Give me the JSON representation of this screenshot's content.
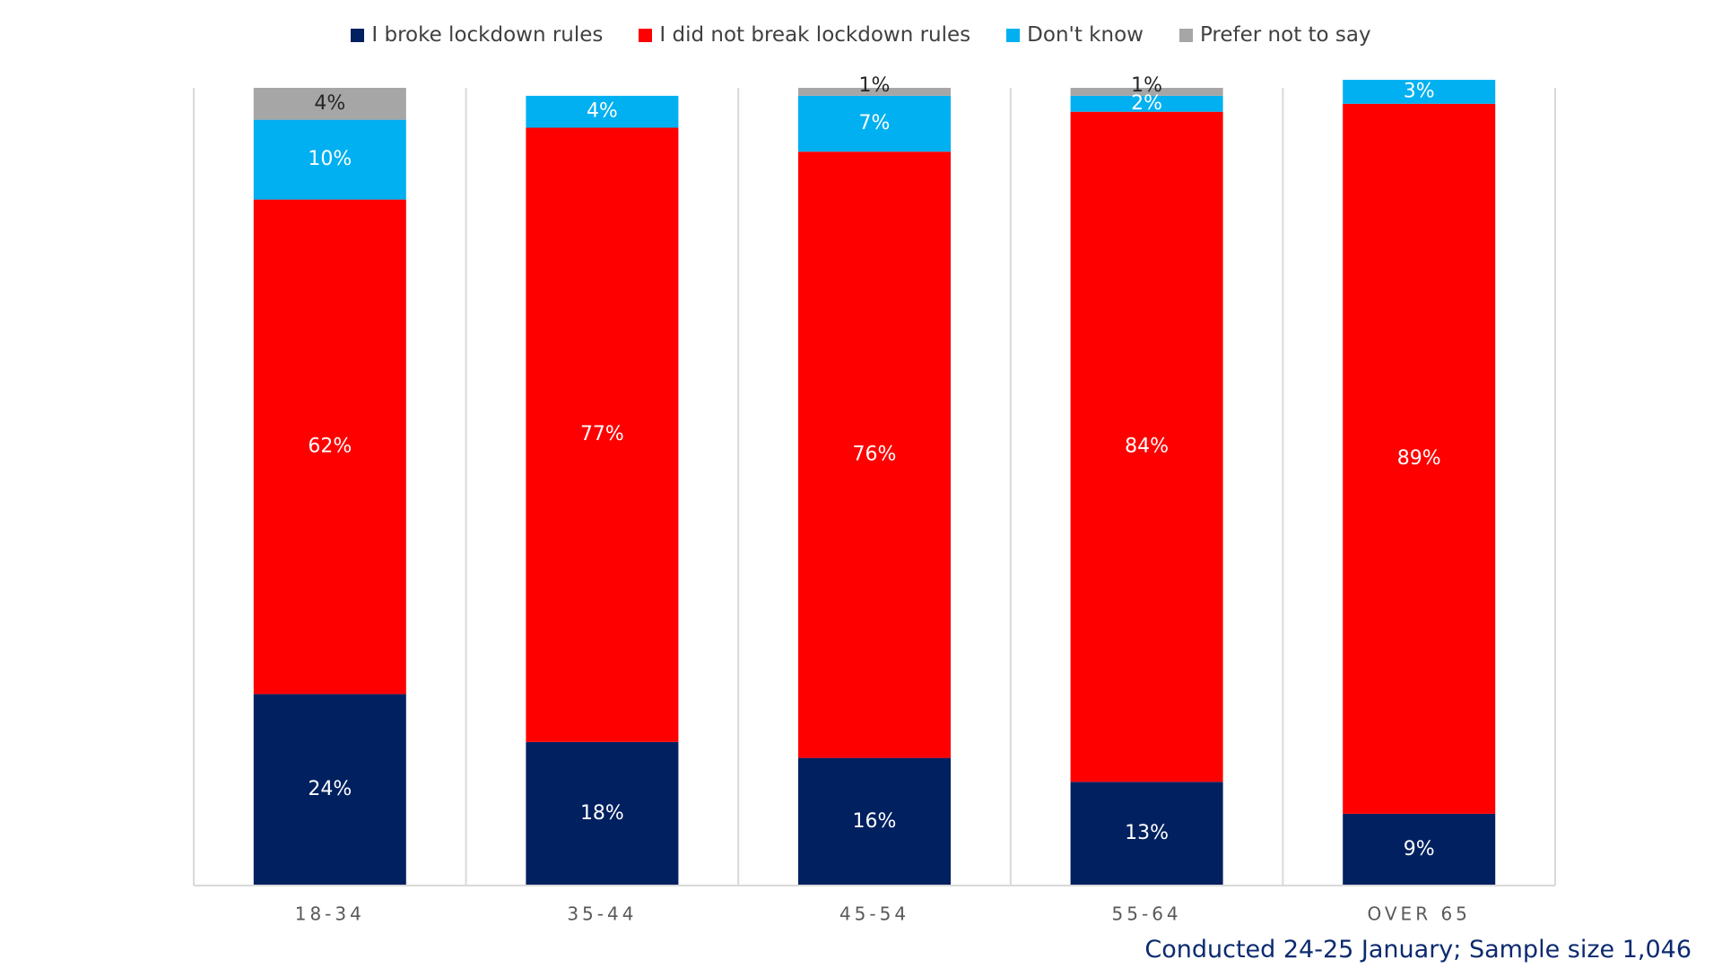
{
  "chart_data": {
    "type": "bar",
    "stacked": true,
    "categories": [
      "18-34",
      "35-44",
      "45-54",
      "55-64",
      "OVER 65"
    ],
    "series": [
      {
        "name": "I broke lockdown rules",
        "color": "#002060",
        "label_color": "#ffffff",
        "values": [
          24,
          18,
          16,
          13,
          9
        ]
      },
      {
        "name": "I did not break lockdown rules",
        "color": "#ff0000",
        "label_color": "#ffffff",
        "values": [
          62,
          77,
          76,
          84,
          89
        ]
      },
      {
        "name": "Don't know",
        "color": "#00b0f0",
        "label_color": "#ffffff",
        "values": [
          10,
          4,
          7,
          2,
          3
        ]
      },
      {
        "name": "Prefer not to say",
        "color": "#a6a6a6",
        "label_color": "#262626",
        "values": [
          4,
          0,
          1,
          1,
          0
        ]
      }
    ],
    "data_labels": [
      [
        "24%",
        "62%",
        "10%",
        "4%"
      ],
      [
        "18%",
        "77%",
        "4%",
        ""
      ],
      [
        "16%",
        "76%",
        "7%",
        "1%"
      ],
      [
        "13%",
        "84%",
        "2%",
        "1%"
      ],
      [
        "9%",
        "89%",
        "3%",
        ""
      ]
    ],
    "ylim": [
      0,
      100
    ],
    "grid": false,
    "legend_position": "top"
  },
  "footnote": "Conducted 24-25 January; Sample size 1,046"
}
